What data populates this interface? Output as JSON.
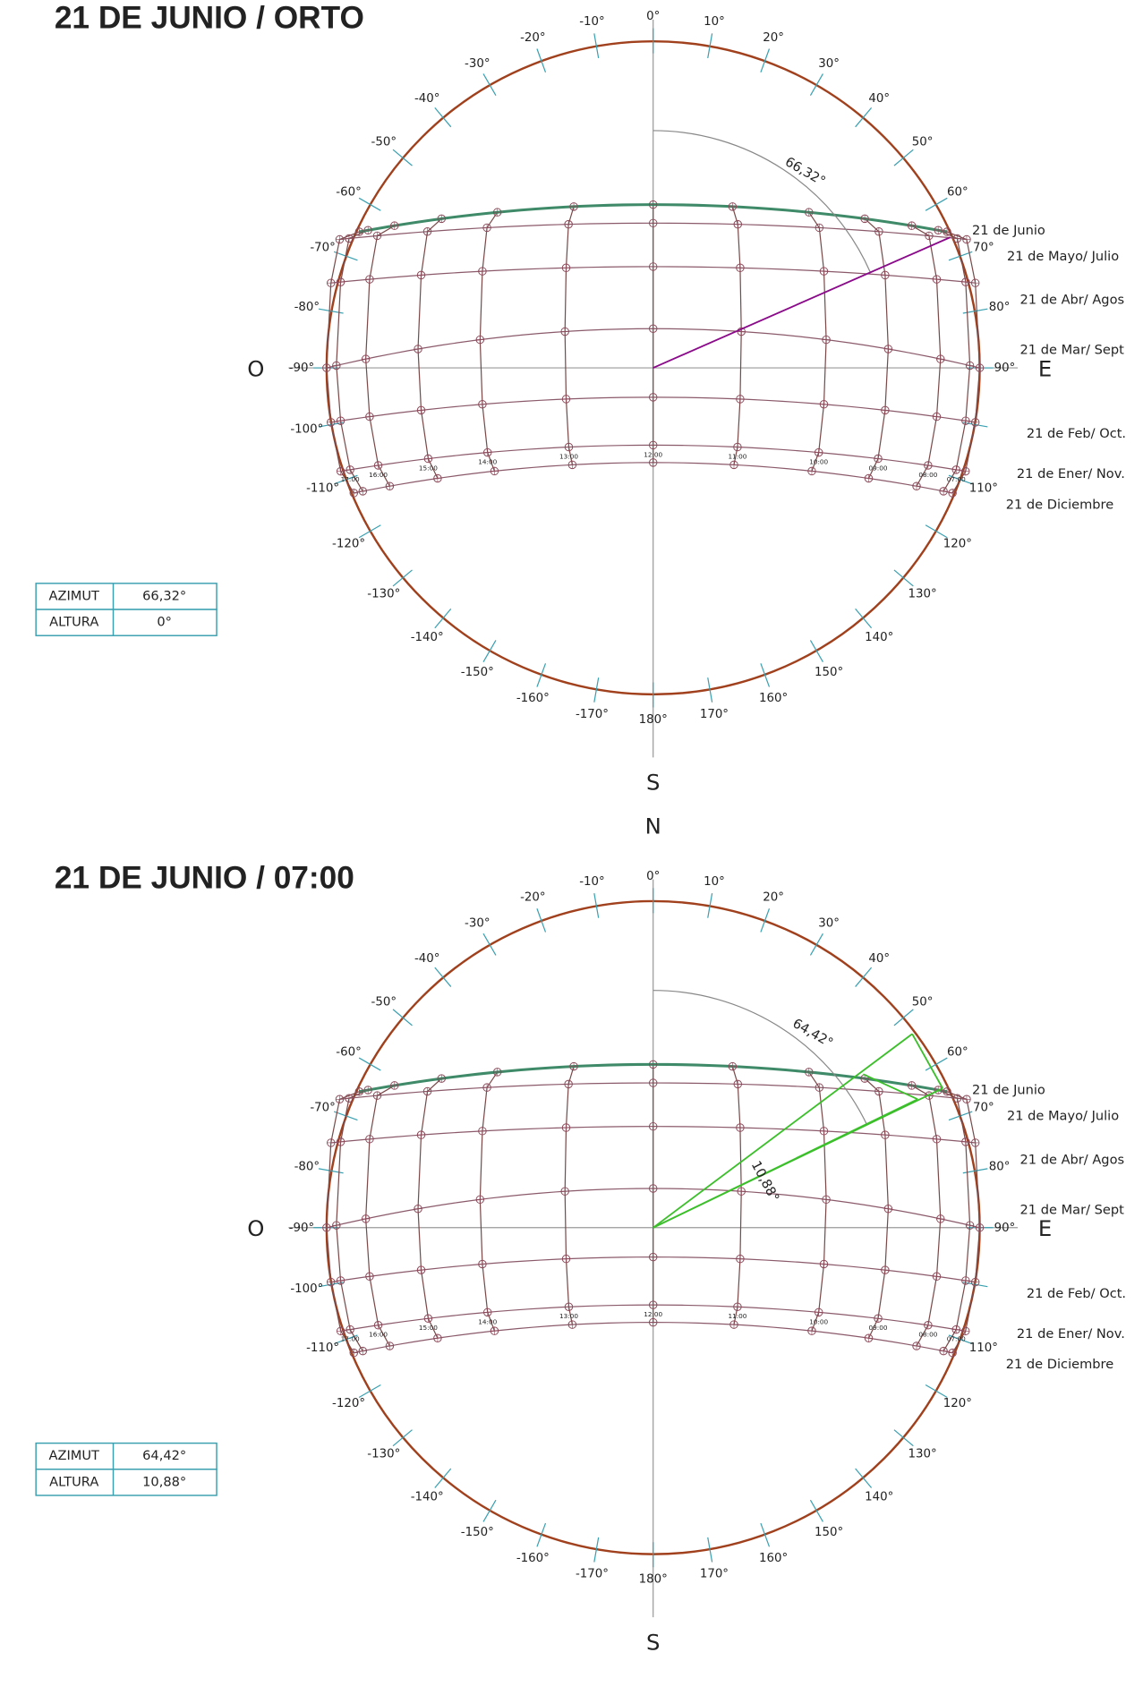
{
  "diagrams": [
    {
      "title": "21 DE JUNIO / ORTO",
      "table": {
        "rows": [
          [
            "AZIMUT",
            "66,32°"
          ],
          [
            "ALTURA",
            "0°"
          ]
        ]
      },
      "azimuth_label": "66,32°",
      "compass": {
        "west": "O",
        "east": "E",
        "south": "S"
      }
    },
    {
      "title": "21 DE JUNIO / 07:00",
      "table": {
        "rows": [
          [
            "AZIMUT",
            "64,42°"
          ],
          [
            "ALTURA",
            "10,88°"
          ]
        ]
      },
      "azimuth_label": "64,42°",
      "altitude_label": "10,88°",
      "compass": {
        "north": "N",
        "west": "O",
        "east": "E",
        "south": "S"
      }
    }
  ],
  "degree_labels": [
    "0°",
    "10°",
    "20°",
    "30°",
    "40°",
    "50°",
    "60°",
    "70°",
    "80°",
    "90°",
    "110°",
    "120°",
    "130°",
    "140°",
    "150°",
    "160°",
    "170°",
    "180°",
    "-170°",
    "-160°",
    "-150°",
    "-140°",
    "-130°",
    "-120°",
    "-110°",
    "-100°",
    "-90°",
    "-80°",
    "-70°",
    "-60°",
    "-50°",
    "-40°",
    "-30°",
    "-20°",
    "-10°"
  ],
  "month_labels": [
    "21 de Junio",
    "21 de Mayo/ Julio",
    "21 de Abr/ Agos",
    "21 de Mar/ Sept",
    "21 de Feb/ Oct.",
    "21 de Ener/ Nov.",
    "21 de Diciembre"
  ],
  "hour_labels": [
    "17:00",
    "16:00",
    "15:00",
    "14:00",
    "13:00",
    "12:00",
    "11:00",
    "10:00",
    "09:00",
    "08:00",
    "07:00"
  ]
}
